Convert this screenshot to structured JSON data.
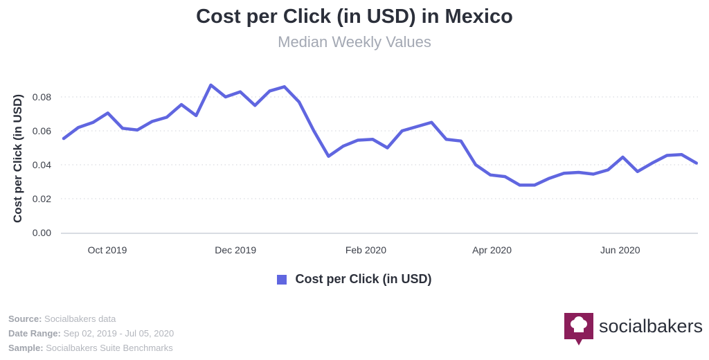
{
  "chart_data": {
    "type": "line",
    "title": "Cost per Click (in USD) in Mexico",
    "subtitle": "Median Weekly Values",
    "ylabel": "Cost per Click (in USD)",
    "xlabel": "",
    "ylim": [
      0,
      0.09
    ],
    "yticks": [
      "0.00",
      "0.02",
      "0.04",
      "0.06",
      "0.08"
    ],
    "xticks": [
      {
        "label": "Oct 2019",
        "date": "2019-10-01"
      },
      {
        "label": "Dec 2019",
        "date": "2019-12-01"
      },
      {
        "label": "Feb 2020",
        "date": "2020-02-01"
      },
      {
        "label": "Apr 2020",
        "date": "2020-04-01"
      },
      {
        "label": "Jun 2020",
        "date": "2020-06-01"
      }
    ],
    "grid": true,
    "legend_position": "bottom",
    "series": [
      {
        "name": "Cost per Click (in USD)",
        "color": "#6066e0",
        "start_date": "2019-09-02",
        "interval": "weekly",
        "values": [
          0.0555,
          0.062,
          0.065,
          0.0705,
          0.0615,
          0.0605,
          0.0655,
          0.068,
          0.0755,
          0.069,
          0.087,
          0.08,
          0.083,
          0.075,
          0.0835,
          0.086,
          0.077,
          0.06,
          0.045,
          0.051,
          0.0545,
          0.055,
          0.05,
          0.06,
          0.0625,
          0.065,
          0.055,
          0.054,
          0.04,
          0.034,
          0.033,
          0.028,
          0.028,
          0.032,
          0.035,
          0.0355,
          0.0345,
          0.037,
          0.0445,
          0.036,
          0.041,
          0.0455,
          0.046,
          0.041
        ]
      }
    ]
  },
  "footer": {
    "source_label": "Source:",
    "source_value": "Socialbakers data",
    "range_label": "Date Range:",
    "range_value": "Sep 02, 2019 - Jul 05, 2020",
    "sample_label": "Sample:",
    "sample_value": "Socialbakers Suite Benchmarks"
  },
  "logo": {
    "text": "socialbakers",
    "color": "#8b1e5a"
  }
}
